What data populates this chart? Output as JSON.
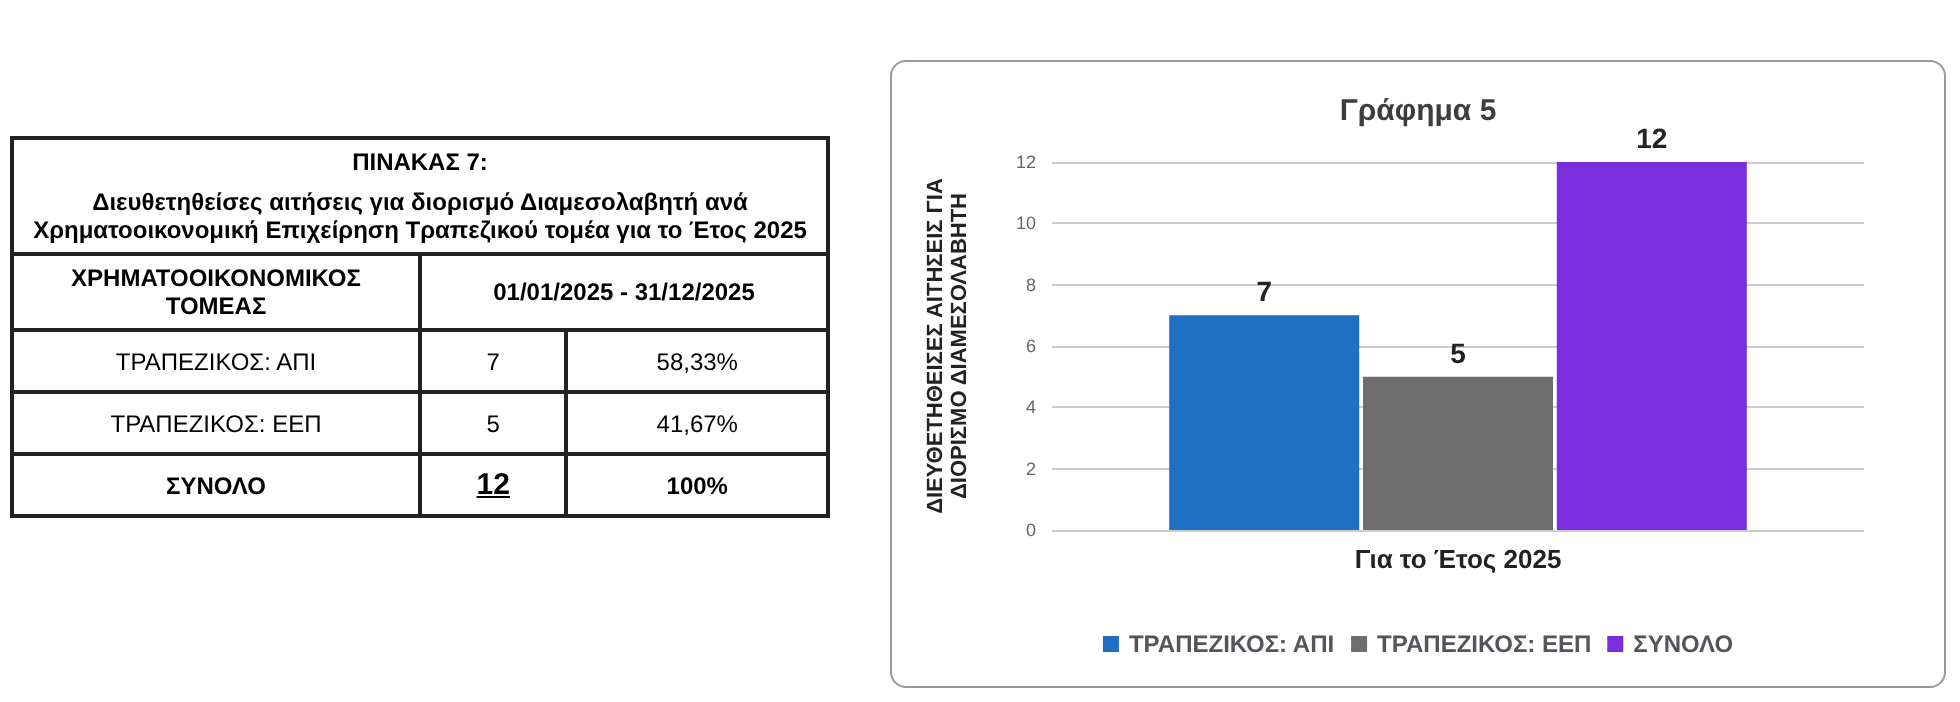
{
  "chart_data": [
    {
      "type": "other",
      "title": "ΠΙΝΑΚΑΣ 7:",
      "subtitle": "Διευθετηθείσες αιτήσεις για διορισμό Διαμεσολαβητή ανά Χρηματοοικονομική Επιχείρηση Τραπεζικού τομέα για το Έτος 2025",
      "annotations": [
        "ΧΡΗΜΑΤΟΟΙΚΟΝΟΜΙΚΟΣ ΤΟΜΕΑΣ",
        "01/01/2025 - 31/12/2025",
        "ΤΡΑΠΕΖΙΚΟΣ: ΑΠΙ",
        "7",
        "58,33%",
        "ΤΡΑΠΕΖΙΚΟΣ: ΕΕΠ",
        "5",
        "41,67%",
        "ΣΥΝΟΛΟ",
        "12",
        "100%"
      ]
    },
    {
      "type": "bar",
      "title": "Γράφημα 5",
      "ylabel": "ΔΙΕΥΘΕΤΗΘΕΙΣΕΣ ΑΙΤΗΣΕΙΣ ΓΙΑ ΔΙΟΡΙΣΜΟ ΔΙΑΜΕΣΟΛΑΒΗΤΗ",
      "categories": [
        "Για το Έτος 2025"
      ],
      "series": [
        {
          "name": "ΤΡΑΠΕΖΙΚΟΣ: ΑΠΙ",
          "color": "#1f6fc4",
          "values": [
            7
          ]
        },
        {
          "name": "ΤΡΑΠΕΖΙΚΟΣ: ΕΕΠ",
          "color": "#6e6e6e",
          "values": [
            5
          ]
        },
        {
          "name": "ΣΥΝΟΛΟ",
          "color": "#7a2ee0",
          "values": [
            12
          ]
        }
      ],
      "ylim": [
        0,
        12
      ],
      "yticks": [
        0,
        2,
        4,
        6,
        8,
        10,
        12
      ],
      "grid": "y",
      "legend": "bottom",
      "data_labels": true
    }
  ]
}
